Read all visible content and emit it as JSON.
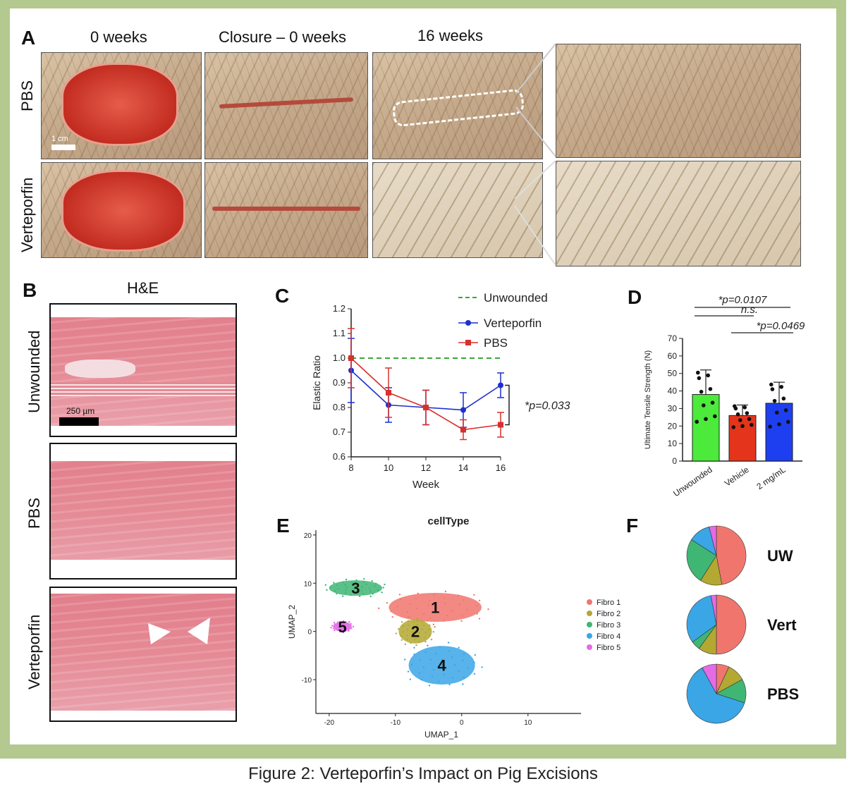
{
  "panel_a": {
    "label": "A",
    "headers": [
      "0 weeks",
      "Closure – 0 weeks",
      "16 weeks"
    ],
    "rows": [
      "PBS",
      "Verteporfin"
    ],
    "scale_bar": "1 cm"
  },
  "panel_b": {
    "label": "B",
    "header": "H&E",
    "rows": [
      "Unwounded",
      "PBS",
      "Verteporfin"
    ],
    "scale_bar": "250 µm"
  },
  "panel_c": {
    "label": "C",
    "significance": "*p=0.033",
    "chart_data": {
      "type": "line",
      "xlabel": "Week",
      "ylabel": "Elastic Ratio",
      "x": [
        8,
        10,
        12,
        14,
        16
      ],
      "xlim": [
        8,
        16
      ],
      "ylim": [
        0.6,
        1.2
      ],
      "y_ticks": [
        0.6,
        0.7,
        0.8,
        0.9,
        1.0,
        1.1,
        1.2
      ],
      "legend": [
        "Unwounded",
        "Verteporfin",
        "PBS"
      ],
      "series": [
        {
          "name": "Unwounded",
          "values": [
            1.0,
            1.0,
            1.0,
            1.0,
            1.0
          ],
          "color": "#3aa63a",
          "style": "dashed"
        },
        {
          "name": "Verteporfin",
          "values": [
            0.95,
            0.81,
            0.8,
            0.79,
            0.89
          ],
          "err": [
            0.13,
            0.07,
            0.07,
            0.07,
            0.05
          ],
          "color": "#1f2fcf"
        },
        {
          "name": "PBS",
          "values": [
            1.0,
            0.86,
            0.8,
            0.71,
            0.73
          ],
          "err": [
            0.12,
            0.1,
            0.07,
            0.04,
            0.05
          ],
          "color": "#d9302c"
        }
      ]
    }
  },
  "panel_d": {
    "label": "D",
    "p1": "*p=0.0107",
    "ns": "n.s.",
    "p2": "*p=0.0469",
    "chart_data": {
      "type": "bar",
      "ylabel": "Ultimate Tensile Strength (N)",
      "categories": [
        "Unwounded",
        "Vehicle",
        "2 mg/mL"
      ],
      "values": [
        38,
        26,
        33
      ],
      "err": [
        14,
        6,
        12
      ],
      "ylim": [
        0,
        70
      ],
      "y_ticks": [
        0,
        10,
        20,
        30,
        40,
        50,
        60,
        70
      ],
      "colors": [
        "#4bea3b",
        "#e5341c",
        "#1e3ff0"
      ]
    }
  },
  "panel_e": {
    "label": "E",
    "chart_data": {
      "type": "scatter",
      "title": "cellType",
      "xlabel": "UMAP_1",
      "ylabel": "UMAP_2",
      "x_ticks": [
        -20,
        -10,
        0,
        10
      ],
      "y_ticks": [
        -10,
        0,
        10,
        20
      ],
      "xlim": [
        -22,
        18
      ],
      "ylim": [
        -17,
        21
      ],
      "clusters": [
        {
          "name": "Fibro 1",
          "number": "1",
          "color": "#f0766d",
          "cx": -4,
          "cy": 5
        },
        {
          "name": "Fibro 2",
          "number": "2",
          "color": "#b3a832",
          "cx": -7,
          "cy": 0
        },
        {
          "name": "Fibro 3",
          "number": "3",
          "color": "#3fb674",
          "cx": -16,
          "cy": 9
        },
        {
          "name": "Fibro 4",
          "number": "4",
          "color": "#3aa6e6",
          "cx": -3,
          "cy": -7
        },
        {
          "name": "Fibro 5",
          "number": "5",
          "color": "#e46ae6",
          "cx": -18,
          "cy": 1
        }
      ]
    }
  },
  "panel_f": {
    "label": "F",
    "chart_data": {
      "type": "pie",
      "categories": [
        "Fibro 1",
        "Fibro 2",
        "Fibro 3",
        "Fibro 4",
        "Fibro 5"
      ],
      "colors": [
        "#f0766d",
        "#b3a832",
        "#3fb674",
        "#3aa6e6",
        "#e46ae6"
      ],
      "pies": [
        {
          "name": "UW",
          "values": [
            47,
            12,
            25,
            12,
            4
          ]
        },
        {
          "name": "Vert",
          "values": [
            50,
            10,
            5,
            32,
            3
          ]
        },
        {
          "name": "PBS",
          "values": [
            7,
            10,
            13,
            62,
            8
          ]
        }
      ]
    }
  },
  "caption": "Figure 2: Verteporfin’s Impact on Pig Excisions"
}
